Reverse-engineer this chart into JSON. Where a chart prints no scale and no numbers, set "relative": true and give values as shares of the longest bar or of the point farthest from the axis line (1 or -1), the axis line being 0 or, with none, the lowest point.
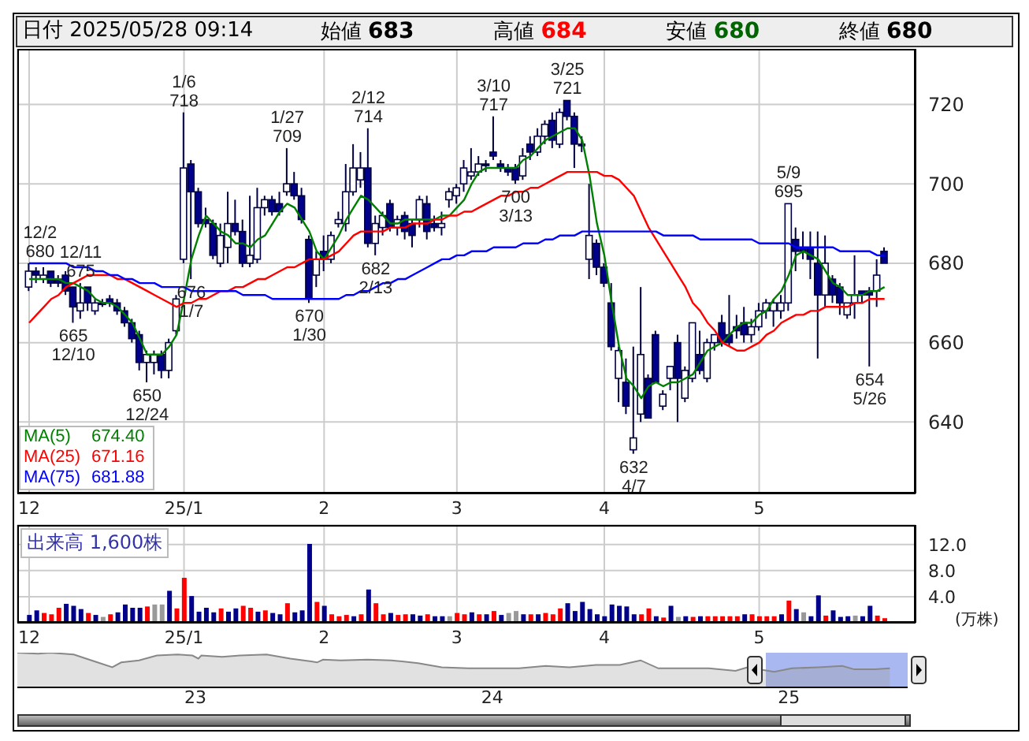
{
  "chart_data": [
    {
      "type": "candlestick",
      "title": "日付 2025/05/28 09:14",
      "categories": [
        "12",
        null,
        null,
        null,
        null,
        null,
        null,
        null,
        null,
        null,
        null,
        null,
        null,
        null,
        null,
        null,
        null,
        null,
        null,
        null,
        null,
        "25/1",
        null,
        null,
        null,
        null,
        null,
        null,
        null,
        null,
        null,
        null,
        null,
        null,
        null,
        null,
        null,
        null,
        null,
        null,
        "2",
        null,
        null,
        null,
        null,
        null,
        null,
        null,
        null,
        null,
        null,
        null,
        null,
        null,
        null,
        null,
        null,
        null,
        "3",
        null,
        null,
        null,
        null,
        null,
        null,
        null,
        null,
        null,
        null,
        null,
        null,
        null,
        null,
        null,
        null,
        null,
        null,
        null,
        "4",
        null,
        null,
        null,
        null,
        null,
        null,
        null,
        null,
        null,
        null,
        null,
        null,
        null,
        null,
        null,
        null,
        null,
        null,
        null,
        null,
        "5",
        null,
        null,
        null,
        null,
        null,
        null,
        null,
        null,
        null,
        null,
        null,
        null,
        null,
        null,
        null,
        null,
        null
      ],
      "ohlc": [
        [
          674,
          680,
          673,
          678
        ],
        [
          678,
          679,
          675,
          677
        ],
        [
          676,
          679,
          675,
          677
        ],
        [
          678,
          678,
          674,
          675
        ],
        [
          676,
          677,
          674,
          675
        ],
        [
          677,
          678,
          672,
          673
        ],
        [
          674,
          674,
          665,
          669
        ],
        [
          668,
          675,
          666,
          670
        ],
        [
          674,
          674,
          668,
          670
        ],
        [
          668,
          671,
          667,
          670
        ],
        [
          670,
          671,
          669,
          670
        ],
        [
          671,
          672,
          669,
          670
        ],
        [
          670,
          671,
          667,
          668
        ],
        [
          668,
          669,
          664,
          665
        ],
        [
          665,
          666,
          660,
          661
        ],
        [
          662,
          663,
          653,
          655
        ],
        [
          655,
          658,
          650,
          657
        ],
        [
          655,
          658,
          652,
          657
        ],
        [
          657,
          658,
          651,
          653
        ],
        [
          653,
          661,
          651,
          660
        ],
        [
          663,
          672,
          662,
          671
        ],
        [
          681,
          718,
          680,
          704
        ],
        [
          705,
          706,
          676,
          698
        ],
        [
          698,
          699,
          689,
          690
        ],
        [
          691,
          694,
          689,
          690
        ],
        [
          690,
          691,
          681,
          682
        ],
        [
          680,
          690,
          679,
          687
        ],
        [
          684,
          698,
          680,
          690
        ],
        [
          690,
          696,
          687,
          688
        ],
        [
          688,
          691,
          679,
          680
        ],
        [
          680,
          697,
          679,
          682
        ],
        [
          681,
          699,
          680,
          694
        ],
        [
          694,
          697,
          692,
          696
        ],
        [
          696,
          697,
          692,
          693
        ],
        [
          695,
          698,
          692,
          693
        ],
        [
          698,
          709,
          697,
          700
        ],
        [
          700,
          703,
          696,
          697
        ],
        [
          697,
          699,
          690,
          691
        ],
        [
          686,
          687,
          670,
          671
        ],
        [
          677,
          683,
          674,
          681
        ],
        [
          683,
          687,
          678,
          681
        ],
        [
          681,
          688,
          680,
          687
        ],
        [
          690,
          693,
          689,
          691
        ],
        [
          690,
          705,
          688,
          698
        ],
        [
          698,
          710,
          697,
          704
        ],
        [
          701,
          708,
          699,
          704
        ],
        [
          704,
          714,
          684,
          685
        ],
        [
          685,
          692,
          682,
          690
        ],
        [
          689,
          693,
          687,
          692
        ],
        [
          695,
          696,
          688,
          689
        ],
        [
          689,
          692,
          687,
          691
        ],
        [
          692,
          693,
          686,
          688
        ],
        [
          690,
          691,
          684,
          687
        ],
        [
          691,
          697,
          689,
          696
        ],
        [
          695,
          697,
          686,
          688
        ],
        [
          690,
          692,
          688,
          689
        ],
        [
          689,
          693,
          687,
          690
        ],
        [
          696,
          699,
          694,
          698
        ],
        [
          697,
          700,
          695,
          699
        ],
        [
          700,
          706,
          698,
          704
        ],
        [
          702,
          709,
          701,
          703
        ],
        [
          703,
          707,
          702,
          705
        ],
        [
          705,
          706,
          703,
          705
        ],
        [
          708,
          717,
          706,
          707
        ],
        [
          705,
          706,
          703,
          704
        ],
        [
          704,
          705,
          702,
          703
        ],
        [
          704,
          705,
          700,
          701
        ],
        [
          702,
          709,
          701,
          707
        ],
        [
          710,
          712,
          706,
          708
        ],
        [
          708,
          714,
          707,
          712
        ],
        [
          712,
          716,
          710,
          715
        ],
        [
          716,
          718,
          709,
          711
        ],
        [
          710,
          719,
          709,
          718
        ],
        [
          721,
          721,
          716,
          717
        ],
        [
          717,
          718,
          704,
          710
        ],
        [
          710,
          712,
          708,
          710
        ],
        [
          681,
          700,
          676,
          687
        ],
        [
          685,
          686,
          677,
          679
        ],
        [
          679,
          680,
          674,
          675
        ],
        [
          670,
          675,
          658,
          659
        ],
        [
          651,
          659,
          645,
          658
        ],
        [
          650,
          656,
          642,
          644
        ],
        [
          633,
          659,
          632,
          636
        ],
        [
          642,
          674,
          640,
          657
        ],
        [
          651,
          652,
          641,
          641
        ],
        [
          662,
          663,
          650,
          650
        ],
        [
          644,
          648,
          643,
          647
        ],
        [
          651,
          654,
          648,
          654
        ],
        [
          660,
          662,
          640,
          651
        ],
        [
          646,
          654,
          645,
          653
        ],
        [
          651,
          665,
          650,
          665
        ],
        [
          657,
          663,
          652,
          653
        ],
        [
          651,
          661,
          650,
          660
        ],
        [
          660,
          662,
          658,
          662
        ],
        [
          665,
          667,
          659,
          660
        ],
        [
          662,
          672,
          659,
          660
        ],
        [
          664,
          667,
          661,
          663
        ],
        [
          665,
          669,
          660,
          662
        ],
        [
          662,
          666,
          660,
          664
        ],
        [
          664,
          670,
          663,
          668
        ],
        [
          668,
          671,
          666,
          670
        ],
        [
          668,
          671,
          664,
          670
        ],
        [
          668,
          672,
          666,
          670
        ],
        [
          670,
          695,
          668,
          695
        ],
        [
          686,
          689,
          678,
          683
        ],
        [
          684,
          688,
          681,
          683
        ],
        [
          684,
          688,
          676,
          681
        ],
        [
          680,
          688,
          656,
          672
        ],
        [
          672,
          687,
          669,
          680
        ],
        [
          676,
          677,
          670,
          672
        ],
        [
          674,
          675,
          667,
          670
        ],
        [
          667,
          670,
          666,
          670
        ],
        [
          670,
          682,
          666,
          672
        ],
        [
          673,
          673,
          670,
          672
        ],
        [
          673,
          674,
          654,
          672
        ],
        [
          673,
          681,
          669,
          677
        ],
        [
          683,
          684,
          680,
          680
        ]
      ],
      "colors": [
        "#ffffff",
        "#00008b",
        "#ffffff",
        "#00008b",
        "#00008b",
        "#00008b",
        "#00008b",
        "#ffffff",
        "#00008b",
        "#ffffff",
        "#000000",
        "#00008b",
        "#00008b",
        "#00008b",
        "#00008b",
        "#00008b",
        "#ffffff",
        "#ffffff",
        "#00008b",
        "#ffffff",
        "#ffffff",
        "#ffffff",
        "#00008b",
        "#00008b",
        "#00008b",
        "#00008b",
        "#ffffff",
        "#ffffff",
        "#00008b",
        "#00008b",
        "#ffffff",
        "#ffffff",
        "#ffffff",
        "#00008b",
        "#00008b",
        "#ffffff",
        "#00008b",
        "#00008b",
        "#00008b",
        "#ffffff",
        "#00008b",
        "#ffffff",
        "#ffffff",
        "#ffffff",
        "#ffffff",
        "#ffffff",
        "#00008b",
        "#ffffff",
        "#ffffff",
        "#00008b",
        "#ffffff",
        "#00008b",
        "#00008b",
        "#ffffff",
        "#00008b",
        "#00008b",
        "#ffffff",
        "#ffffff",
        "#ffffff",
        "#ffffff",
        "#ffffff",
        "#ffffff",
        "#000000",
        "#00008b",
        "#00008b",
        "#00008b",
        "#00008b",
        "#ffffff",
        "#00008b",
        "#ffffff",
        "#ffffff",
        "#00008b",
        "#ffffff",
        "#00008b",
        "#00008b",
        "#000000",
        "#ffffff",
        "#00008b",
        "#00008b",
        "#00008b",
        "#ffffff",
        "#00008b",
        "#ffffff",
        "#ffffff",
        "#00008b",
        "#00008b",
        "#ffffff",
        "#ffffff",
        "#00008b",
        "#ffffff",
        "#ffffff",
        "#00008b",
        "#ffffff",
        "#ffffff",
        "#00008b",
        "#00008b",
        "#00008b",
        "#00008b",
        "#ffffff",
        "#ffffff",
        "#ffffff",
        "#ffffff",
        "#ffffff",
        "#ffffff",
        "#00008b",
        "#00008b",
        "#00008b",
        "#00008b",
        "#ffffff",
        "#00008b",
        "#00008b",
        "#ffffff",
        "#ffffff",
        "#00008b",
        "#00008b",
        "#ffffff",
        "#00008b"
      ],
      "series": [
        {
          "name": "MA(5) 674.40",
          "type": "line",
          "color": "#008000",
          "values": [
            676,
            676,
            676,
            676,
            676,
            675,
            675,
            674,
            673,
            671,
            670,
            670,
            669,
            667,
            665,
            661,
            657,
            657,
            657,
            659,
            662,
            671,
            681,
            687,
            692,
            690,
            688,
            687,
            685,
            685,
            684,
            686,
            687,
            690,
            693,
            695,
            694,
            691,
            688,
            683,
            681,
            684,
            687,
            691,
            694,
            697,
            696,
            694,
            692,
            690,
            690,
            691,
            691,
            691,
            691,
            691,
            692,
            692,
            694,
            696,
            700,
            703,
            704,
            704,
            704,
            704,
            704,
            706,
            707,
            709,
            711,
            712,
            713,
            714,
            714,
            711,
            702,
            690,
            682,
            670,
            659,
            651,
            649,
            646,
            649,
            650,
            649,
            650,
            650,
            651,
            652,
            655,
            658,
            659,
            660,
            662,
            664,
            665,
            665,
            667,
            668,
            671,
            673,
            677,
            682,
            683,
            682,
            681,
            678,
            675,
            674,
            672,
            672,
            672,
            673,
            673,
            674
          ]
        },
        {
          "name": "MA(25) 671.16",
          "type": "line",
          "color": "#ff0000",
          "values": [
            665,
            667,
            669,
            671,
            672,
            674,
            675,
            676,
            677,
            677,
            677,
            677,
            676,
            676,
            675,
            674,
            673,
            672,
            671,
            670,
            669,
            670,
            670,
            671,
            671,
            672,
            673,
            673,
            674,
            674,
            675,
            676,
            676,
            677,
            678,
            679,
            679,
            680,
            681,
            681,
            681,
            682,
            683,
            685,
            687,
            688,
            688,
            688,
            688,
            689,
            689,
            689,
            690,
            690,
            690,
            691,
            691,
            692,
            692,
            693,
            693,
            694,
            695,
            696,
            697,
            697,
            698,
            698,
            699,
            699,
            700,
            701,
            702,
            703,
            703,
            703,
            703,
            703,
            702,
            702,
            701,
            699,
            697,
            693,
            689,
            686,
            683,
            680,
            677,
            674,
            670,
            668,
            665,
            663,
            660,
            659,
            658,
            658,
            659,
            660,
            662,
            663,
            665,
            666,
            667,
            667,
            668,
            668,
            669,
            669,
            669,
            669,
            670,
            670,
            671,
            671,
            671
          ]
        },
        {
          "name": "MA(75) 681.88",
          "type": "line",
          "color": "#0000ff",
          "values": [
            680,
            680,
            680,
            680,
            680,
            680,
            679,
            679,
            679,
            678,
            678,
            677,
            677,
            676,
            676,
            675,
            675,
            675,
            674,
            674,
            674,
            674,
            673,
            673,
            673,
            673,
            673,
            673,
            673,
            672,
            672,
            672,
            672,
            671,
            671,
            671,
            671,
            671,
            671,
            671,
            671,
            671,
            671,
            672,
            672,
            673,
            673,
            674,
            675,
            675,
            676,
            676,
            677,
            678,
            679,
            680,
            681,
            681,
            682,
            682,
            683,
            683,
            683,
            684,
            684,
            684,
            684,
            685,
            685,
            685,
            686,
            686,
            687,
            687,
            687,
            688,
            688,
            688,
            688,
            688,
            688,
            688,
            688,
            688,
            688,
            688,
            687,
            687,
            687,
            687,
            687,
            686,
            686,
            686,
            686,
            686,
            686,
            686,
            686,
            685,
            685,
            685,
            685,
            685,
            684,
            684,
            684,
            684,
            684,
            684,
            683,
            683,
            683,
            683,
            683,
            682,
            682
          ]
        }
      ],
      "ylim": [
        622,
        734
      ],
      "yticks": [
        640,
        660,
        680,
        700,
        720
      ],
      "grid": true,
      "legend": "bottom left",
      "annotations": [
        "始値 683",
        "高値 684",
        "安値 680",
        "終値 680",
        {
          "text": "12/2\n680",
          "y": 680
        },
        {
          "text": "665\n12/10",
          "y": 665
        },
        {
          "text": "12/11\n675",
          "y": 675
        },
        {
          "text": "650\n12/24",
          "y": 650
        },
        {
          "text": "1/6\n718",
          "y": 718
        },
        {
          "text": "676\n1/7",
          "y": 676
        },
        {
          "text": "1/27\n709",
          "y": 709
        },
        {
          "text": "670\n1/30",
          "y": 670
        },
        {
          "text": "2/12\n714",
          "y": 714
        },
        {
          "text": "682\n2/13",
          "y": 682
        },
        {
          "text": "3/10\n717",
          "y": 717
        },
        {
          "text": "700\n3/13",
          "y": 700
        },
        {
          "text": "3/25\n721",
          "y": 721
        },
        {
          "text": "632\n4/7",
          "y": 632
        },
        {
          "text": "5/9\n695",
          "y": 695
        },
        {
          "text": "654\n5/26",
          "y": 654
        }
      ]
    },
    {
      "type": "bar",
      "title": "出来高 1,600株",
      "ylabel": "(万株)",
      "categories": [
        "12",
        null,
        null,
        null,
        null,
        null,
        null,
        null,
        null,
        null,
        null,
        null,
        null,
        null,
        null,
        null,
        null,
        null,
        null,
        null,
        null,
        "25/1",
        null,
        null,
        null,
        null,
        null,
        null,
        null,
        null,
        null,
        null,
        null,
        null,
        null,
        null,
        null,
        null,
        null,
        null,
        "2",
        null,
        null,
        null,
        null,
        null,
        null,
        null,
        null,
        null,
        null,
        null,
        null,
        null,
        null,
        null,
        null,
        null,
        "3",
        null,
        null,
        null,
        null,
        null,
        null,
        null,
        null,
        null,
        null,
        null,
        null,
        null,
        null,
        null,
        null,
        null,
        null,
        null,
        "4",
        null,
        null,
        null,
        null,
        null,
        null,
        null,
        null,
        null,
        null,
        null,
        null,
        null,
        null,
        null,
        null,
        null,
        null,
        null,
        null,
        "5",
        null,
        null,
        null,
        null,
        null,
        null,
        null,
        null,
        null,
        null,
        null,
        null,
        null,
        null,
        null,
        null,
        null
      ],
      "values": [
        1.2,
        1.9,
        1.5,
        1.3,
        2.3,
        2.9,
        2.6,
        2.1,
        1.5,
        1.2,
        0.9,
        1.3,
        1.6,
        2.8,
        2.3,
        2.3,
        2.5,
        2.8,
        2.8,
        4.9,
        2.2,
        6.9,
        4.1,
        1.7,
        2.3,
        1.6,
        2.2,
        1.7,
        2.2,
        2.6,
        2.3,
        1.7,
        1.9,
        1.5,
        1.3,
        3.0,
        1.6,
        1.9,
        12.1,
        3.2,
        2.6,
        1.3,
        1.0,
        1.2,
        1.0,
        1.3,
        5.1,
        3.0,
        1.3,
        1.5,
        1.2,
        1.3,
        1.3,
        1.1,
        1.3,
        1.0,
        1.0,
        1.0,
        1.5,
        1.3,
        1.6,
        1.3,
        1.3,
        1.8,
        1.2,
        1.5,
        1.8,
        1.3,
        1.3,
        1.3,
        1.5,
        1.3,
        2.2,
        3.0,
        1.8,
        3.2,
        2.1,
        1.3,
        1.0,
        2.8,
        2.6,
        2.5,
        1.3,
        1.3,
        2.2,
        1.0,
        0.8,
        2.6,
        0.9,
        1.0,
        0.9,
        1.0,
        1.0,
        1.0,
        1.0,
        1.0,
        1.0,
        1.3,
        1.3,
        1.0,
        1.0,
        1.0,
        1.3,
        3.4,
        2.1,
        1.6,
        1.0,
        4.2,
        1.1,
        1.9,
        0.9,
        1.0,
        1.1,
        1.0,
        2.6,
        1.1,
        0.7
      ],
      "colors": [
        "#00008b",
        "#00008b",
        "#ff0000",
        "#ff0000",
        "#ff0000",
        "#00008b",
        "#00008b",
        "#00008b",
        "#ff0000",
        "#00008b",
        "#999999",
        "#ff0000",
        "#00008b",
        "#00008b",
        "#00008b",
        "#00008b",
        "#ff0000",
        "#999999",
        "#999999",
        "#00008b",
        "#ff0000",
        "#ff0000",
        "#00008b",
        "#00008b",
        "#00008b",
        "#00008b",
        "#ff0000",
        "#00008b",
        "#00008b",
        "#ff0000",
        "#ff0000",
        "#00008b",
        "#ff0000",
        "#00008b",
        "#00008b",
        "#ff0000",
        "#00008b",
        "#00008b",
        "#00008b",
        "#ff0000",
        "#00008b",
        "#ff0000",
        "#ff0000",
        "#ff0000",
        "#00008b",
        "#ff0000",
        "#00008b",
        "#ff0000",
        "#ff0000",
        "#00008b",
        "#ff0000",
        "#ff0000",
        "#00008b",
        "#00008b",
        "#ff0000",
        "#00008b",
        "#00008b",
        "#999999",
        "#ff0000",
        "#ff0000",
        "#00008b",
        "#ff0000",
        "#00008b",
        "#ff0000",
        "#00008b",
        "#999999",
        "#999999",
        "#00008b",
        "#ff0000",
        "#00008b",
        "#ff0000",
        "#ff0000",
        "#ff0000",
        "#00008b",
        "#00008b",
        "#00008b",
        "#00008b",
        "#00008b",
        "#00008b",
        "#00008b",
        "#00008b",
        "#00008b",
        "#00008b",
        "#ff0000",
        "#ff0000",
        "#00008b",
        "#ff0000",
        "#00008b",
        "#999999",
        "#00008b",
        "#ff0000",
        "#00008b",
        "#ff0000",
        "#ff0000",
        "#ff0000",
        "#ff0000",
        "#ff0000",
        "#00008b",
        "#ff0000",
        "#ff0000",
        "#ff0000",
        "#ff0000",
        "#00008b",
        "#ff0000",
        "#00008b",
        "#999999",
        "#00008b",
        "#00008b",
        "#ff0000",
        "#00008b",
        "#00008b",
        "#00008b",
        "#999999",
        "#00008b",
        "#00008b",
        "#ff0000",
        "#ff0000"
      ],
      "ylim": [
        0,
        15
      ],
      "yticks": [
        {
          "value": 4,
          "label": "4.0"
        },
        {
          "value": 8,
          "label": "8.0"
        },
        {
          "value": 12,
          "label": "12.0"
        }
      ],
      "grid": true
    },
    {
      "type": "area",
      "relative": true,
      "color": "#888888",
      "x": [
        2022.4,
        2022.47,
        2022.51,
        2022.59,
        2022.66,
        2022.72,
        2022.75,
        2022.81,
        2022.87,
        2022.94,
        2022.99,
        2023.01,
        2023.02,
        2023.09,
        2023.15,
        2023.24,
        2023.32,
        2023.39,
        2023.41,
        2023.43,
        2023.49,
        2023.58,
        2023.66,
        2023.75,
        2023.83,
        2023.92,
        2024.01,
        2024.09,
        2024.18,
        2024.26,
        2024.35,
        2024.43,
        2024.5,
        2024.56,
        2024.65,
        2024.73,
        2024.82,
        2024.86,
        2024.95,
        2025.01,
        2025.1,
        2025.18,
        2025.22,
        2025.29,
        2025.34
      ],
      "values": [
        1,
        0.97,
        1,
        0.95,
        0.75,
        0.58,
        0.72,
        0.78,
        0.92,
        0.95,
        0.92,
        0.83,
        0.92,
        0.88,
        0.92,
        0.95,
        0.83,
        0.75,
        0.72,
        0.8,
        0.78,
        0.8,
        0.78,
        0.7,
        0.58,
        0.55,
        0.55,
        0.55,
        0.62,
        0.58,
        0.65,
        0.65,
        0.78,
        0.55,
        0.55,
        0.55,
        0.48,
        0.58,
        0.45,
        0.55,
        0.58,
        0.62,
        0.52,
        0.52,
        0.55
      ],
      "xlim": [
        2022.4,
        2025.4
      ],
      "xticks": [
        {
          "value": 2023,
          "label": "23"
        },
        {
          "value": 2024,
          "label": "24"
        },
        {
          "value": 2025,
          "label": "25"
        }
      ],
      "bands": [
        {
          "axis": "x",
          "from": 2024.92,
          "to": 2025.4,
          "color": "#a9b8f0"
        }
      ]
    }
  ]
}
